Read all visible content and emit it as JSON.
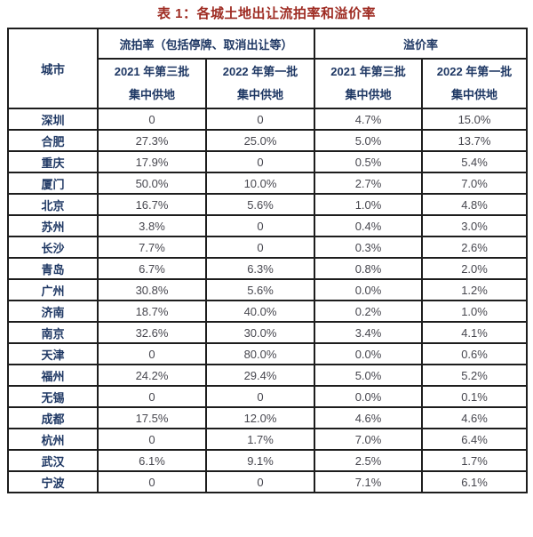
{
  "title": "表 1：各城土地出让流拍率和溢价率",
  "colors": {
    "title_text": "#9e2b22",
    "header_text": "#1f3864",
    "city_text": "#1f3864",
    "value_text": "#47474f",
    "grid_border": "#1d1d1d",
    "background": "#ffffff"
  },
  "chart_data": {
    "type": "table",
    "title": "表 1：各城土地出让流拍率和溢价率",
    "corner_header": "城市",
    "column_groups": [
      {
        "label": "流拍率（包括停牌、取消出让等）",
        "span": 2
      },
      {
        "label": "溢价率",
        "span": 2
      }
    ],
    "sub_headers": [
      {
        "line1": "2021 年第三批",
        "line2": "集中供地"
      },
      {
        "line1": "2022 年第一批",
        "line2": "集中供地"
      },
      {
        "line1": "2021 年第三批",
        "line2": "集中供地"
      },
      {
        "line1": "2022 年第一批",
        "line2": "集中供地"
      }
    ],
    "rows": [
      {
        "city": "深圳",
        "values": [
          "0",
          "0",
          "4.7%",
          "15.0%"
        ]
      },
      {
        "city": "合肥",
        "values": [
          "27.3%",
          "25.0%",
          "5.0%",
          "13.7%"
        ]
      },
      {
        "city": "重庆",
        "values": [
          "17.9%",
          "0",
          "0.5%",
          "5.4%"
        ]
      },
      {
        "city": "厦门",
        "values": [
          "50.0%",
          "10.0%",
          "2.7%",
          "7.0%"
        ]
      },
      {
        "city": "北京",
        "values": [
          "16.7%",
          "5.6%",
          "1.0%",
          "4.8%"
        ]
      },
      {
        "city": "苏州",
        "values": [
          "3.8%",
          "0",
          "0.4%",
          "3.0%"
        ]
      },
      {
        "city": "长沙",
        "values": [
          "7.7%",
          "0",
          "0.3%",
          "2.6%"
        ]
      },
      {
        "city": "青岛",
        "values": [
          "6.7%",
          "6.3%",
          "0.8%",
          "2.0%"
        ]
      },
      {
        "city": "广州",
        "values": [
          "30.8%",
          "5.6%",
          "0.0%",
          "1.2%"
        ]
      },
      {
        "city": "济南",
        "values": [
          "18.7%",
          "40.0%",
          "0.2%",
          "1.0%"
        ]
      },
      {
        "city": "南京",
        "values": [
          "32.6%",
          "30.0%",
          "3.4%",
          "4.1%"
        ]
      },
      {
        "city": "天津",
        "values": [
          "0",
          "80.0%",
          "0.0%",
          "0.6%"
        ]
      },
      {
        "city": "福州",
        "values": [
          "24.2%",
          "29.4%",
          "5.0%",
          "5.2%"
        ]
      },
      {
        "city": "无锡",
        "values": [
          "0",
          "0",
          "0.0%",
          "0.1%"
        ]
      },
      {
        "city": "成都",
        "values": [
          "17.5%",
          "12.0%",
          "4.6%",
          "4.6%"
        ]
      },
      {
        "city": "杭州",
        "values": [
          "0",
          "1.7%",
          "7.0%",
          "6.4%"
        ]
      },
      {
        "city": "武汉",
        "values": [
          "6.1%",
          "9.1%",
          "2.5%",
          "1.7%"
        ]
      },
      {
        "city": "宁波",
        "values": [
          "0",
          "0",
          "7.1%",
          "6.1%"
        ]
      }
    ]
  }
}
